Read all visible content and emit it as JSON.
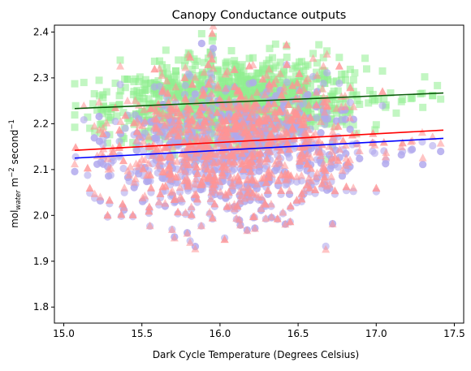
{
  "chart_data": {
    "type": "scatter",
    "title": "Canopy Conductance outputs",
    "xlabel": "Dark Cycle Temperature (Degrees Celsius)",
    "ylabel": {
      "prefix": "mol",
      "subscript": "water",
      "middle": " m",
      "sup1": "−2",
      "suffix": " second",
      "sup2": "−1"
    },
    "xlim": [
      14.94,
      17.56
    ],
    "ylim": [
      1.765,
      2.415
    ],
    "x_ticks": [
      15.0,
      15.5,
      16.0,
      16.5,
      17.0,
      17.5
    ],
    "x_tick_labels": [
      "15.0",
      "15.5",
      "16.0",
      "16.5",
      "17.0",
      "17.5"
    ],
    "y_ticks": [
      1.8,
      1.9,
      2.0,
      2.1,
      2.2,
      2.3,
      2.4
    ],
    "y_tick_labels": [
      "1.8",
      "1.9",
      "2.0",
      "2.1",
      "2.2",
      "2.3",
      "2.4"
    ],
    "grid": false,
    "legend": "none",
    "series": [
      {
        "marker": "square",
        "color": "#90ee90",
        "x_range": [
          15.07,
          17.43
        ],
        "center_x": 16.1,
        "center_y": 2.25,
        "spread_y": 0.05,
        "trend": {
          "x": [
            15.07,
            17.43
          ],
          "y": [
            2.233,
            2.267
          ],
          "color": "#0a5c0a"
        }
      },
      {
        "marker": "circle",
        "color": "#b0a8ec",
        "x_range": [
          15.07,
          17.43
        ],
        "center_x": 16.1,
        "center_y": 2.14,
        "spread_y": 0.08,
        "trend": {
          "x": [
            15.07,
            17.43
          ],
          "y": [
            2.125,
            2.168
          ],
          "color": "#0000ff"
        }
      },
      {
        "marker": "triangle",
        "color": "#ff9494",
        "x_range": [
          15.07,
          17.43
        ],
        "center_x": 16.1,
        "center_y": 2.16,
        "spread_y": 0.09,
        "trend": {
          "x": [
            15.07,
            17.43
          ],
          "y": [
            2.142,
            2.186
          ],
          "color": "#ff0000"
        }
      }
    ]
  }
}
